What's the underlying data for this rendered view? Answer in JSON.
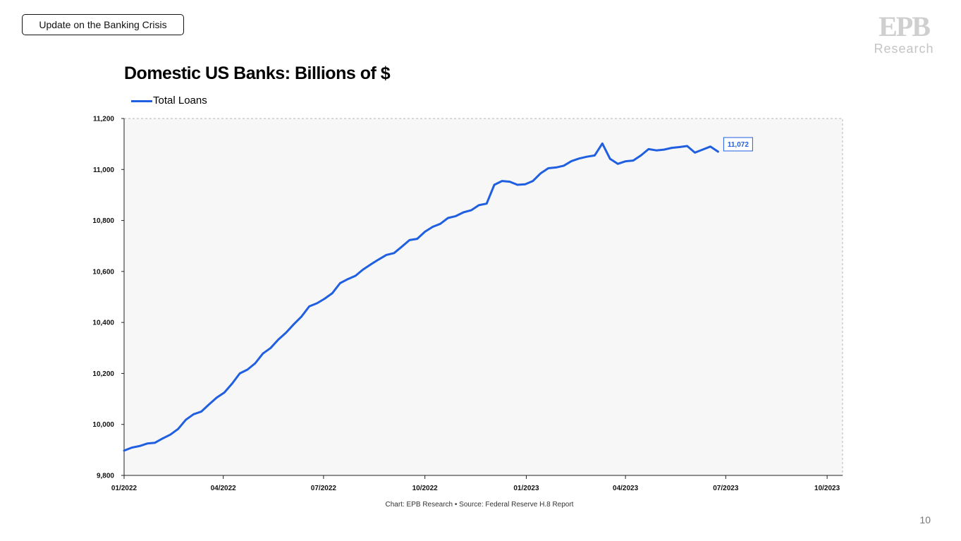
{
  "header": {
    "section_label": "Update on the Banking Crisis",
    "logo_letters": "EPB",
    "logo_word": "Research"
  },
  "footer": {
    "source": "Chart: EPB Research •  Source: Federal Reserve H.8 Report",
    "page_number": "10"
  },
  "colors": {
    "series": "#1f5fe0",
    "plot_background": "#f7f7f7",
    "plot_border": "#b5b5b5"
  },
  "chart_data": {
    "type": "line",
    "title": "Domestic US Banks: Billions of $",
    "xlabel": "",
    "ylabel": "",
    "ylim": [
      9800,
      11200
    ],
    "xlim": [
      "2022-01-01",
      "2023-10-15"
    ],
    "yticks": [
      9800,
      10000,
      10200,
      10400,
      10600,
      10800,
      11000,
      11200
    ],
    "ytick_labels": [
      "9,800",
      "10,000",
      "10,200",
      "10,400",
      "10,600",
      "10,800",
      "11,000",
      "11,200"
    ],
    "xticks": [
      "2022-01-01",
      "2022-04-01",
      "2022-07-01",
      "2022-10-01",
      "2023-01-01",
      "2023-04-01",
      "2023-07-01",
      "2023-10-01"
    ],
    "xtick_labels": [
      "01/2022",
      "04/2022",
      "07/2022",
      "10/2022",
      "01/2023",
      "04/2023",
      "07/2023",
      "10/2023"
    ],
    "grid": false,
    "legend_position": "top-left",
    "last_value_label": "11,072",
    "series": [
      {
        "name": "Total Loans",
        "x": [
          "2022-01-01",
          "2022-01-08",
          "2022-01-15",
          "2022-01-22",
          "2022-01-29",
          "2022-02-05",
          "2022-02-12",
          "2022-02-19",
          "2022-02-26",
          "2022-03-05",
          "2022-03-12",
          "2022-03-19",
          "2022-03-26",
          "2022-04-02",
          "2022-04-09",
          "2022-04-16",
          "2022-04-23",
          "2022-04-30",
          "2022-05-07",
          "2022-05-14",
          "2022-05-21",
          "2022-05-28",
          "2022-06-04",
          "2022-06-11",
          "2022-06-18",
          "2022-06-25",
          "2022-07-02",
          "2022-07-09",
          "2022-07-16",
          "2022-07-23",
          "2022-07-30",
          "2022-08-06",
          "2022-08-13",
          "2022-08-20",
          "2022-08-27",
          "2022-09-03",
          "2022-09-10",
          "2022-09-17",
          "2022-09-24",
          "2022-10-01",
          "2022-10-08",
          "2022-10-15",
          "2022-10-22",
          "2022-10-29",
          "2022-11-05",
          "2022-11-12",
          "2022-11-19",
          "2022-11-26",
          "2022-12-03",
          "2022-12-10",
          "2022-12-17",
          "2022-12-24",
          "2022-12-31",
          "2023-01-07",
          "2023-01-14",
          "2023-01-21",
          "2023-01-28",
          "2023-02-04",
          "2023-02-11",
          "2023-02-18",
          "2023-02-25",
          "2023-03-04",
          "2023-03-11",
          "2023-03-18",
          "2023-03-25",
          "2023-04-01",
          "2023-04-08",
          "2023-04-15",
          "2023-04-22",
          "2023-04-29",
          "2023-05-06",
          "2023-05-13",
          "2023-05-20",
          "2023-05-27",
          "2023-06-03",
          "2023-06-10",
          "2023-06-17",
          "2023-06-24"
        ],
        "values": [
          9897,
          9909,
          9915,
          9925,
          9928,
          9945,
          9960,
          9982,
          10018,
          10040,
          10050,
          10078,
          10105,
          10125,
          10160,
          10200,
          10215,
          10240,
          10278,
          10300,
          10333,
          10360,
          10393,
          10423,
          10463,
          10475,
          10493,
          10515,
          10554,
          10570,
          10583,
          10608,
          10628,
          10647,
          10665,
          10672,
          10697,
          10723,
          10728,
          10756,
          10775,
          10787,
          10810,
          10817,
          10832,
          10840,
          10860,
          10866,
          10940,
          10955,
          10952,
          10940,
          10942,
          10955,
          10985,
          11005,
          11008,
          11015,
          11033,
          11043,
          11050,
          11055,
          11102,
          11042,
          11022,
          11032,
          11035,
          11055,
          11080,
          11075,
          11078,
          11085,
          11088,
          11092,
          11066,
          11078,
          11090,
          11070
        ]
      }
    ]
  }
}
